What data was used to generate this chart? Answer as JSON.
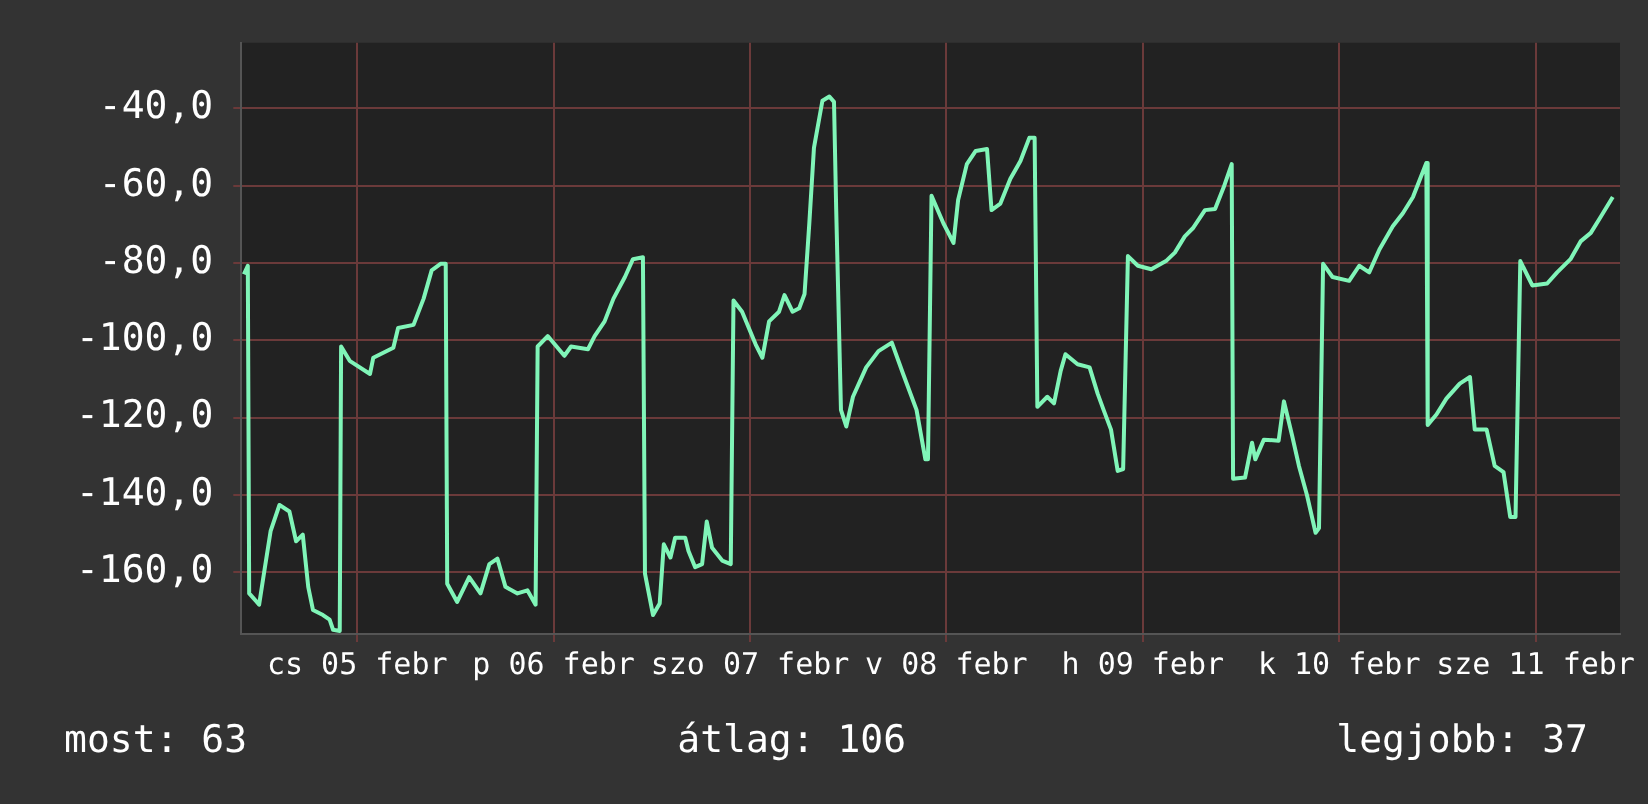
{
  "chart_data": {
    "type": "line",
    "x": [
      "--02-04T10:09",
      "--02-04T10:38",
      "--02-04T10:48",
      "--02-04T12:01",
      "--02-04T12:36",
      "--02-04T13:25",
      "--02-04T14:30",
      "--02-04T15:43",
      "--02-04T16:32",
      "--02-04T17:21",
      "--02-04T18:01",
      "--02-04T18:36",
      "--02-04T19:49",
      "--02-04T20:38",
      "--02-04T21:03",
      "--02-04T21:52",
      "--02-04T22:02",
      "--02-04T23:05",
      "--02-05T01:34",
      "--02-05T01:58",
      "--02-05T04:25",
      "--02-05T05:00",
      "--02-05T06:53",
      "--02-05T08:07",
      "--02-05T09:06",
      "--02-05T10:11",
      "--02-05T10:49",
      "--02-05T11:00",
      "--02-05T12:13",
      "--02-05T13:41",
      "--02-05T15:04",
      "--02-05T16:09",
      "--02-05T17:08",
      "--02-05T18:07",
      "--02-05T19:35",
      "--02-05T20:48",
      "--02-05T21:48",
      "--02-05T22:03",
      "--02-05T23:17",
      "--02-06T01:19",
      "--02-06T02:08",
      "--02-06T04:12",
      "--02-06T05:01",
      "--02-06T06:14",
      "--02-06T07:19",
      "--02-06T08:43",
      "--02-06T09:42",
      "--02-06T10:55",
      "--02-06T11:10",
      "--02-06T12:09",
      "--02-06T12:58",
      "--02-06T13:28",
      "--02-06T14:17",
      "--02-06T14:51",
      "--02-06T16:05",
      "--02-06T16:29",
      "--02-06T17:18",
      "--02-06T18:09",
      "--02-06T18:43",
      "--02-06T19:22",
      "--02-06T20:36",
      "--02-06T21:39",
      "--02-06T21:59",
      "--02-06T23:02",
      "--02-07T00:42",
      "--02-07T01:31",
      "--02-07T02:20",
      "--02-07T03:33",
      "--02-07T04:13",
      "--02-07T05:12",
      "--02-07T06:01",
      "--02-07T06:40",
      "--02-07T07:15",
      "--02-07T07:49",
      "--02-07T08:51",
      "--02-07T09:42",
      "--02-07T10:16",
      "--02-07T10:32",
      "--02-07T11:07",
      "--02-07T11:46",
      "--02-07T12:35",
      "--02-07T14:12",
      "--02-07T15:42",
      "--02-07T17:20",
      "--02-07T18:43",
      "--02-07T20:21",
      "--02-07T21:26",
      "--02-07T21:45",
      "--02-07T22:11",
      "--02-07T23:38",
      "--02-08T00:52",
      "--02-08T01:26",
      "--02-08T02:30",
      "--02-08T03:35",
      "--02-08T04:58",
      "--02-08T05:31",
      "--02-08T06:36",
      "--02-08T07:49",
      "--02-08T09:03",
      "--02-08T10:08",
      "--02-08T10:47",
      "--02-08T11:07",
      "--02-08T12:20",
      "--02-08T13:09",
      "--02-08T13:58",
      "--02-08T14:33",
      "--02-08T16:02",
      "--02-08T17:30",
      "--02-08T18:29",
      "--02-08T19:18",
      "--02-08T20:07",
      "--02-08T20:56",
      "--02-08T21:36",
      "--02-08T22:11",
      "--02-08T23:24",
      "--02-09T01:02",
      "--02-09T02:50",
      "--02-09T03:55",
      "--02-09T05:08",
      "--02-09T06:07",
      "--02-09T07:36",
      "--02-09T08:50",
      "--02-09T09:53",
      "--02-09T10:52",
      "--02-09T11:02",
      "--02-09T12:30",
      "--02-09T13:21",
      "--02-09T13:45",
      "--02-09T14:48",
      "--02-09T16:36",
      "--02-09T17:15",
      "--02-09T18:16",
      "--02-09T19:05",
      "--02-09T20:04",
      "--02-09T21:07",
      "--02-09T21:32",
      "--02-09T22:02",
      "--02-09T23:11",
      "--02-10T01:13",
      "--02-10T02:27",
      "--02-10T03:40",
      "--02-10T04:55",
      "--02-10T06:33",
      "--02-10T07:47",
      "--02-10T09:01",
      "--02-10T10:39",
      "--02-10T10:49",
      "--02-10T11:53",
      "--02-10T13:06",
      "--02-10T14:44",
      "--02-10T15:59",
      "--02-10T16:34",
      "--02-10T18:01",
      "--02-10T19:00",
      "--02-10T20:05",
      "--02-10T20:54",
      "--02-10T21:33",
      "--02-10T22:08",
      "--02-10T23:36",
      "--02-11T01:25",
      "--02-11T02:38",
      "--02-11T04:16",
      "--02-11T05:30",
      "--02-11T06:45",
      "--02-11T07:58",
      "--02-11T09:26"
    ],
    "series": [
      {
        "color": "#80f5b8",
        "values": [
          -82.9,
          -80.7,
          -165.5,
          -168.4,
          -160.4,
          -149.4,
          -142.6,
          -144.3,
          -152.0,
          -150.3,
          -163.8,
          -169.8,
          -171.1,
          -172.3,
          -174.9,
          -175.2,
          -101.6,
          -105.3,
          -108.7,
          -104.5,
          -101.9,
          -96.8,
          -96.0,
          -89.2,
          -81.9,
          -80.2,
          -80.2,
          -163.0,
          -167.7,
          -161.3,
          -165.5,
          -157.9,
          -156.5,
          -163.8,
          -165.5,
          -164.7,
          -168.4,
          -101.6,
          -98.9,
          -104.0,
          -101.6,
          -102.3,
          -98.9,
          -95.1,
          -89.2,
          -83.6,
          -79.0,
          -78.5,
          -160.4,
          -171.1,
          -168.1,
          -152.8,
          -156.2,
          -151.1,
          -151.1,
          -154.5,
          -158.7,
          -157.9,
          -146.9,
          -153.7,
          -157.0,
          -157.9,
          -89.7,
          -92.6,
          -101.1,
          -104.5,
          -95.1,
          -92.6,
          -88.3,
          -92.6,
          -91.7,
          -88.0,
          -69.7,
          -50.2,
          -38.0,
          -36.9,
          -38.3,
          -66.0,
          -118.0,
          -122.3,
          -114.6,
          -107.0,
          -102.8,
          -100.6,
          -108.7,
          -118.0,
          -130.8,
          -130.8,
          -62.6,
          -69.7,
          -74.8,
          -63.7,
          -54.4,
          -51.0,
          -50.5,
          -66.3,
          -64.6,
          -58.2,
          -53.6,
          -47.6,
          -47.6,
          -117.2,
          -114.6,
          -116.3,
          -107.9,
          -103.6,
          -106.2,
          -107.0,
          -113.8,
          -118.5,
          -123.1,
          -133.8,
          -133.3,
          -78.2,
          -80.7,
          -81.6,
          -79.5,
          -77.3,
          -73.1,
          -71.0,
          -66.3,
          -66.0,
          -60.4,
          -54.4,
          -135.8,
          -135.5,
          -126.5,
          -130.8,
          -125.7,
          -126.0,
          -115.8,
          -124.8,
          -132.5,
          -140.1,
          -149.8,
          -148.6,
          -80.2,
          -83.6,
          -84.6,
          -80.7,
          -82.4,
          -76.5,
          -70.5,
          -67.1,
          -62.9,
          -54.1,
          -121.9,
          -119.2,
          -115.1,
          -111.2,
          -109.5,
          -123.1,
          -123.1,
          -132.5,
          -134.1,
          -145.7,
          -145.7,
          -79.5,
          -85.8,
          -85.3,
          -82.4,
          -79.0,
          -74.4,
          -72.2,
          -68.0,
          -62.9
        ]
      }
    ],
    "xlim": [
      "--02-04T09:50",
      "--02-11T10:19"
    ],
    "xticks": [
      {
        "value": "--02-05",
        "label": "cs 05 febr"
      },
      {
        "value": "--02-06",
        "label": "p 06 febr"
      },
      {
        "value": "--02-07",
        "label": "szo 07 febr"
      },
      {
        "value": "--02-08",
        "label": "v 08 febr"
      },
      {
        "value": "--02-09",
        "label": "h 09 febr"
      },
      {
        "value": "--02-10",
        "label": "k 10 febr"
      },
      {
        "value": "--02-11",
        "label": "sze 11 febr"
      }
    ],
    "ylim": [
      -176,
      -23
    ],
    "yticks": [
      {
        "value": -40,
        "label": "-40,0"
      },
      {
        "value": -60,
        "label": "-60,0"
      },
      {
        "value": -80,
        "label": "-80,0"
      },
      {
        "value": -100,
        "label": "-100,0"
      },
      {
        "value": -120,
        "label": "-120,0"
      },
      {
        "value": -140,
        "label": "-140,0"
      },
      {
        "value": -160,
        "label": "-160,0"
      }
    ],
    "grid": true,
    "legend": false,
    "marker": "none",
    "line_style": "solid",
    "annotations": [
      "most: 63",
      "átlag: 106",
      "legjobb: 37"
    ]
  }
}
